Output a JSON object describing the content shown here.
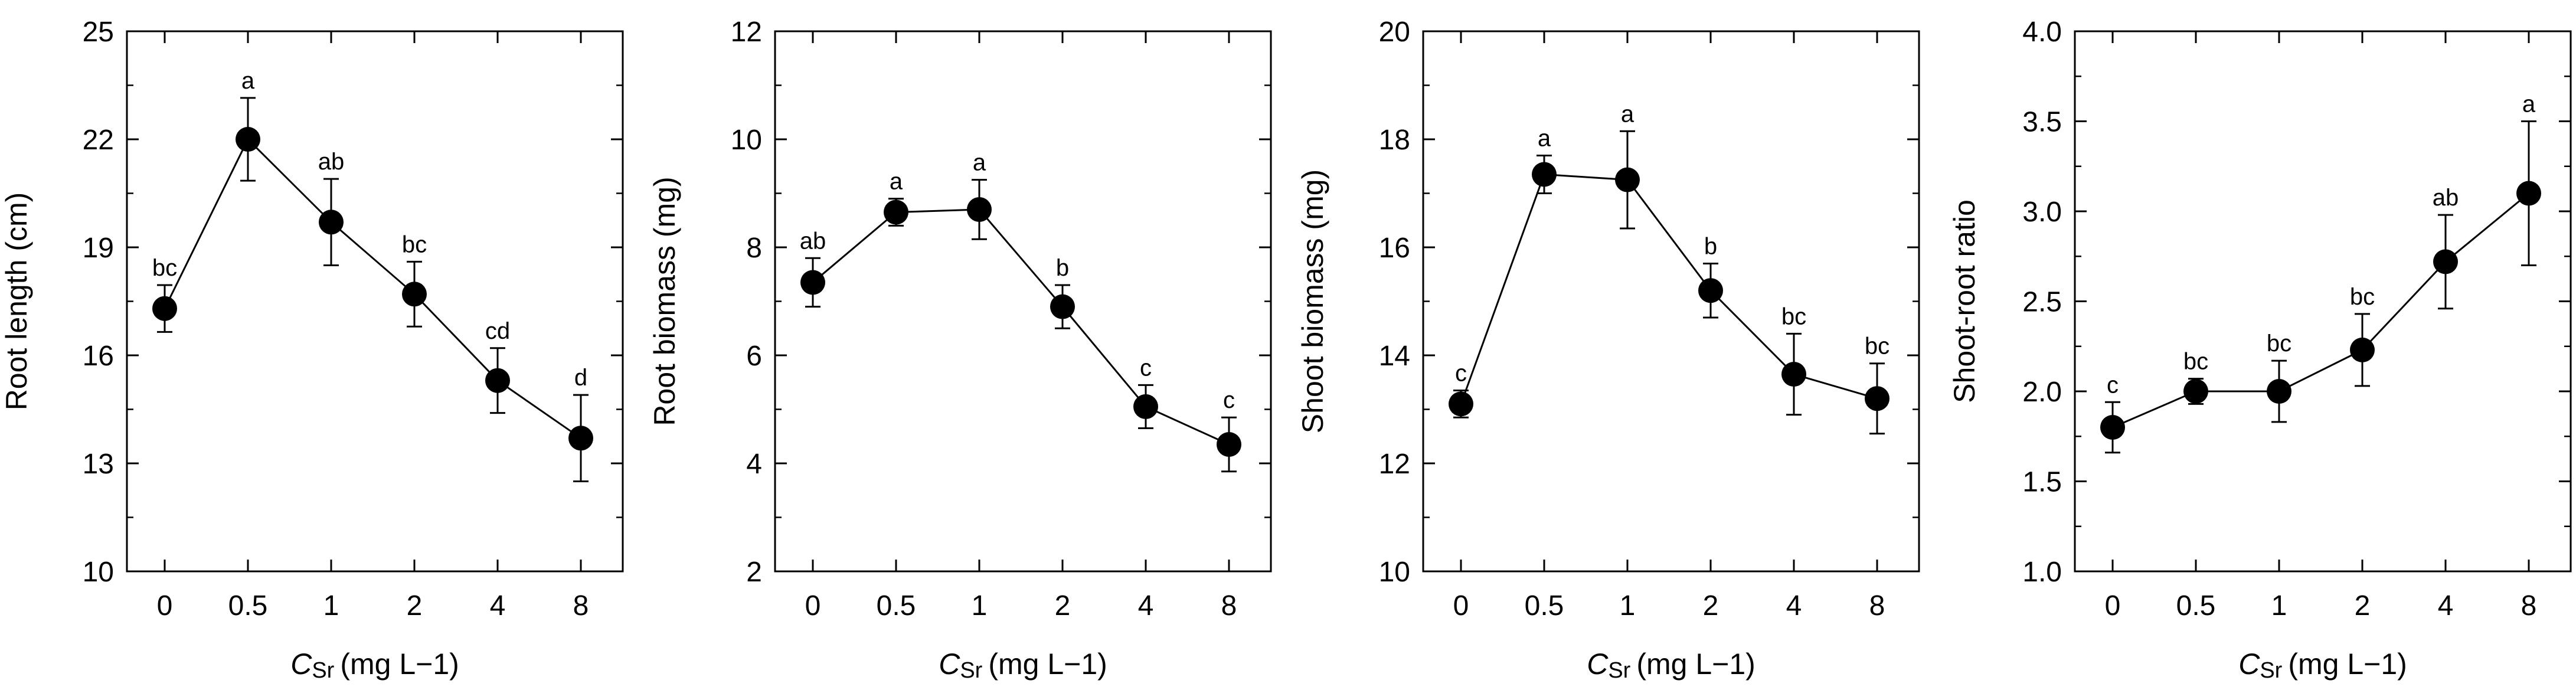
{
  "chart_data": [
    {
      "type": "line",
      "id": "root-length",
      "ylabel": "Root length (cm)",
      "xlabel_var": "C",
      "xlabel_sub": "Sr",
      "xlabel_units": "(mg L−1)",
      "categories": [
        "0",
        "0.5",
        "1",
        "2",
        "4",
        "8"
      ],
      "values": [
        17.3,
        22.0,
        19.7,
        17.7,
        15.3,
        13.7
      ],
      "errors": [
        0.65,
        1.15,
        1.2,
        0.9,
        0.9,
        1.2
      ],
      "letters": [
        "bc",
        "a",
        "ab",
        "bc",
        "cd",
        "d"
      ],
      "ylim": [
        10,
        25
      ],
      "yticks": [
        "10",
        "13",
        "16",
        "19",
        "22",
        "25"
      ],
      "yminor_step": 1.5
    },
    {
      "type": "line",
      "id": "root-biomass",
      "ylabel": "Root biomass (mg)",
      "xlabel_var": "C",
      "xlabel_sub": "Sr",
      "xlabel_units": "(mg L−1)",
      "categories": [
        "0",
        "0.5",
        "1",
        "2",
        "4",
        "8"
      ],
      "values": [
        7.35,
        8.65,
        8.7,
        6.9,
        5.05,
        4.35
      ],
      "errors": [
        0.45,
        0.25,
        0.55,
        0.4,
        0.4,
        0.5
      ],
      "letters": [
        "ab",
        "a",
        "a",
        "b",
        "c",
        "c"
      ],
      "ylim": [
        2,
        12
      ],
      "yticks": [
        "2",
        "4",
        "6",
        "8",
        "10",
        "12"
      ],
      "yminor_step": 1
    },
    {
      "type": "line",
      "id": "shoot-biomass",
      "ylabel": "Shoot biomass (mg)",
      "xlabel_var": "C",
      "xlabel_sub": "Sr",
      "xlabel_units": "(mg L−1)",
      "categories": [
        "0",
        "0.5",
        "1",
        "2",
        "4",
        "8"
      ],
      "values": [
        13.1,
        17.35,
        17.25,
        15.2,
        13.65,
        13.2
      ],
      "errors": [
        0.25,
        0.35,
        0.9,
        0.5,
        0.75,
        0.65
      ],
      "letters": [
        "c",
        "a",
        "a",
        "b",
        "bc",
        "bc"
      ],
      "ylim": [
        10,
        20
      ],
      "yticks": [
        "10",
        "12",
        "14",
        "16",
        "18",
        "20"
      ],
      "yminor_step": 1
    },
    {
      "type": "line",
      "id": "shoot-root-ratio",
      "ylabel": "Shoot-root ratio",
      "xlabel_var": "C",
      "xlabel_sub": "Sr",
      "xlabel_units": "(mg L−1)",
      "categories": [
        "0",
        "0.5",
        "1",
        "2",
        "4",
        "8"
      ],
      "values": [
        1.8,
        2.0,
        2.0,
        2.23,
        2.72,
        3.1
      ],
      "errors": [
        0.14,
        0.07,
        0.17,
        0.2,
        0.26,
        0.4
      ],
      "letters": [
        "c",
        "bc",
        "bc",
        "bc",
        "ab",
        "a"
      ],
      "ylim": [
        1.0,
        4.0
      ],
      "yticks": [
        "1.0",
        "1.5",
        "2.0",
        "2.5",
        "3.0",
        "3.5",
        "4.0"
      ],
      "yminor_step": 0.25
    }
  ]
}
